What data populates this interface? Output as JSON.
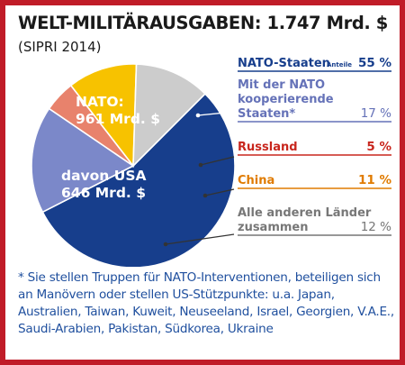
{
  "header": {
    "title": "WELT-MILITÄRAUSGABEN: 1.747 Mrd. $",
    "source": "(SIPRI 2014)"
  },
  "chart_data": {
    "type": "pie",
    "total": "1.747 Mrd. $",
    "share_heading": "Anteile",
    "inner_labels": [
      {
        "lines": [
          "NATO:",
          "961 Mrd. $"
        ]
      },
      {
        "lines": [
          "davon USA",
          "646 Mrd. $"
        ]
      }
    ],
    "slices": [
      {
        "lines": [
          "NATO-Staaten"
        ],
        "value": 55,
        "value_label": "55 %",
        "color": "#173e8c",
        "label_color": "#173e8c"
      },
      {
        "lines": [
          "Mit der NATO",
          "kooperierende",
          "Staaten*"
        ],
        "value": 17,
        "value_label": "17 %",
        "color": "#7b88c9",
        "label_color": "#6572b8"
      },
      {
        "lines": [
          "Russland"
        ],
        "value": 5,
        "value_label": "5 %",
        "color": "#e8826c",
        "label_color": "#c8261d"
      },
      {
        "lines": [
          "China"
        ],
        "value": 11,
        "value_label": "11 %",
        "color": "#f7c200",
        "label_color": "#e07b00"
      },
      {
        "lines": [
          "Alle anderen Länder",
          "zusammen"
        ],
        "value": 12,
        "value_label": "12 %",
        "color": "#cccccc",
        "label_color": "#777777"
      }
    ]
  },
  "footnote": "* Sie stellen Truppen für NATO-Interventionen, beteiligen sich an Manövern oder stellen US-Stützpunkte: u.a. Japan, Australien, Taiwan, Kuweit, Neuseeland, Israel, Georgien, V.A.E., Saudi-Arabien, Pakistan, Südkorea, Ukraine"
}
